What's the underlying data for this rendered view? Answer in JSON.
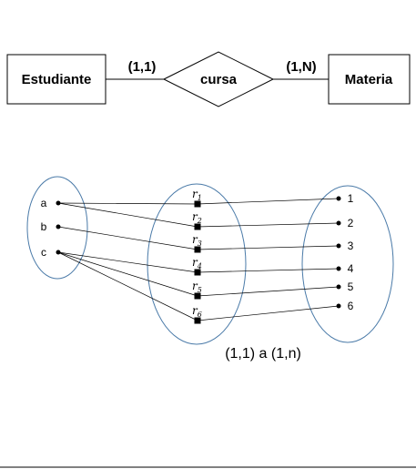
{
  "er": {
    "entity_left": "Estudiante",
    "relationship": "cursa",
    "entity_right": "Materia",
    "cardinality_left": "(1,1)",
    "cardinality_right": "(1,N)"
  },
  "sets": {
    "left": [
      "a",
      "b",
      "c"
    ],
    "relations": [
      {
        "symbol": "r",
        "sub": "1"
      },
      {
        "symbol": "r",
        "sub": "2"
      },
      {
        "symbol": "r",
        "sub": "3"
      },
      {
        "symbol": "r",
        "sub": "4"
      },
      {
        "symbol": "r",
        "sub": "5"
      },
      {
        "symbol": "r",
        "sub": "6"
      }
    ],
    "right": [
      "1",
      "2",
      "3",
      "4",
      "5",
      "6"
    ]
  },
  "mapping": {
    "left_to_relation": [
      {
        "left": "a",
        "relation": 1
      },
      {
        "left": "a",
        "relation": 2
      },
      {
        "left": "b",
        "relation": 3
      },
      {
        "left": "c",
        "relation": 4
      },
      {
        "left": "c",
        "relation": 5
      },
      {
        "left": "c",
        "relation": 6
      }
    ],
    "relation_to_right": [
      {
        "relation": 1,
        "right": "1"
      },
      {
        "relation": 2,
        "right": "2"
      },
      {
        "relation": 3,
        "right": "3"
      },
      {
        "relation": 4,
        "right": "4"
      },
      {
        "relation": 5,
        "right": "5"
      },
      {
        "relation": 6,
        "right": "6"
      }
    ]
  },
  "caption": "(1,1) a (1,n)",
  "colors": {
    "ellipse_stroke": "#4a7aa8",
    "line": "#000000"
  }
}
